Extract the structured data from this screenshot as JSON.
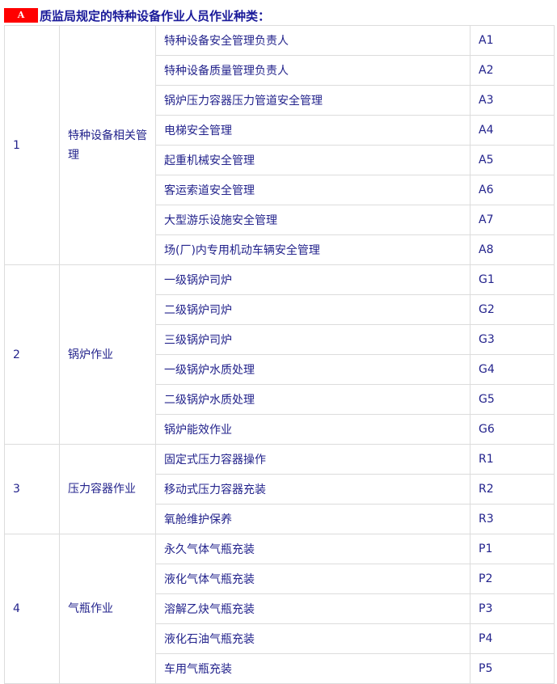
{
  "header": {
    "badge": "A",
    "title": "质监局规定的特种设备作业人员作业种类："
  },
  "groups": [
    {
      "no": "1",
      "name": "特种设备相关管理",
      "items": [
        [
          "特种设备安全管理负责人",
          "A1"
        ],
        [
          "特种设备质量管理负责人",
          "A2"
        ],
        [
          "锅炉压力容器压力管道安全管理",
          "A3"
        ],
        [
          "电梯安全管理",
          "A4"
        ],
        [
          "起重机械安全管理",
          "A5"
        ],
        [
          "客运索道安全管理",
          "A6"
        ],
        [
          "大型游乐设施安全管理",
          "A7"
        ],
        [
          "场(厂)内专用机动车辆安全管理",
          "A8"
        ]
      ]
    },
    {
      "no": "2",
      "name": "锅炉作业",
      "items": [
        [
          "一级锅炉司炉",
          "G1"
        ],
        [
          "二级锅炉司炉",
          "G2"
        ],
        [
          "三级锅炉司炉",
          "G3"
        ],
        [
          "一级锅炉水质处理",
          "G4"
        ],
        [
          "二级锅炉水质处理",
          "G5"
        ],
        [
          "锅炉能效作业",
          "G6"
        ]
      ]
    },
    {
      "no": "3",
      "name": "压力容器作业",
      "items": [
        [
          "固定式压力容器操作",
          "R1"
        ],
        [
          "移动式压力容器充装",
          "R2"
        ],
        [
          "氧舱维护保养",
          "R3"
        ]
      ]
    },
    {
      "no": "4",
      "name": "气瓶作业",
      "items": [
        [
          "永久气体气瓶充装",
          "P1"
        ],
        [
          "液化气体气瓶充装",
          "P2"
        ],
        [
          "溶解乙炔气瓶充装",
          "P3"
        ],
        [
          "液化石油气瓶充装",
          "P4"
        ],
        [
          "车用气瓶充装",
          "P5"
        ]
      ]
    }
  ]
}
